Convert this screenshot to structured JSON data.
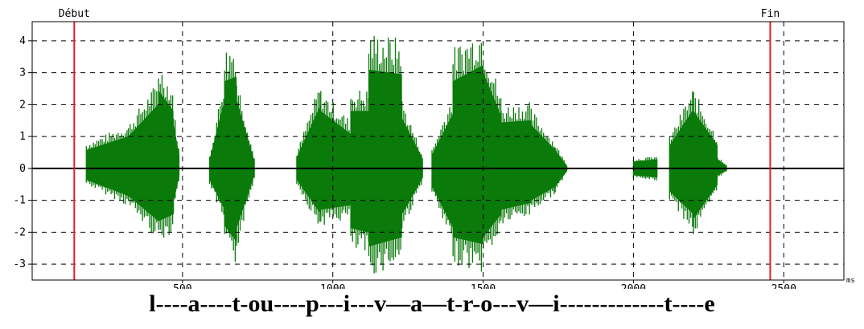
{
  "chart_data": {
    "type": "line",
    "xlabel": "ms",
    "ylabel": "",
    "xlim": [
      0,
      2700
    ],
    "ylim": [
      -3.5,
      4.6
    ],
    "x_ticks": [
      {
        "value": 500,
        "label": "500"
      },
      {
        "value": 1000,
        "label": "1000"
      },
      {
        "value": 1500,
        "label": "1500"
      },
      {
        "value": 2000,
        "label": "2000"
      },
      {
        "value": 2500,
        "label": "2500"
      }
    ],
    "y_ticks": [
      {
        "value": 4,
        "label": "4"
      },
      {
        "value": 3,
        "label": "3"
      },
      {
        "value": 2,
        "label": "2"
      },
      {
        "value": 1,
        "label": "1"
      },
      {
        "value": 0,
        "label": "0"
      },
      {
        "value": -1,
        "label": "-1"
      },
      {
        "value": -2,
        "label": "-2"
      },
      {
        "value": -3,
        "label": "-3"
      }
    ],
    "grid": true,
    "colors": {
      "waveform": "#0a7a0a",
      "marker": "#e02020",
      "grid": "#000000"
    },
    "markers": [
      {
        "name": "debut",
        "x": 140,
        "label": "Début"
      },
      {
        "name": "fin",
        "x": 2455,
        "label": "Fin"
      }
    ],
    "series": [
      {
        "envelope_segments": [
          {
            "x0": 180,
            "x1": 320,
            "pos0": 0.8,
            "pos1": 1.4,
            "neg0": -0.5,
            "neg1": -1.2
          },
          {
            "x0": 320,
            "x1": 420,
            "pos0": 1.4,
            "pos1": 2.8,
            "neg0": -1.2,
            "neg1": -2.3
          },
          {
            "x0": 420,
            "x1": 470,
            "pos0": 3.4,
            "pos1": 2.5,
            "neg0": -2.3,
            "neg1": -2.0
          },
          {
            "x0": 470,
            "x1": 490,
            "pos0": 2.0,
            "pos1": 0.5,
            "neg0": -1.5,
            "neg1": -0.3
          },
          {
            "x0": 590,
            "x1": 640,
            "pos0": 0.4,
            "pos1": 3.0,
            "neg0": -0.5,
            "neg1": -1.8
          },
          {
            "x0": 640,
            "x1": 680,
            "pos0": 3.8,
            "pos1": 4.0,
            "neg0": -2.5,
            "neg1": -3.2
          },
          {
            "x0": 680,
            "x1": 740,
            "pos0": 3.0,
            "pos1": 0.3,
            "neg0": -2.6,
            "neg1": -0.3
          },
          {
            "x0": 880,
            "x1": 960,
            "pos0": 0.5,
            "pos1": 2.8,
            "neg0": -0.5,
            "neg1": -2.0
          },
          {
            "x0": 960,
            "x1": 1060,
            "pos0": 2.5,
            "pos1": 1.5,
            "neg0": -1.8,
            "neg1": -1.6
          },
          {
            "x0": 1060,
            "x1": 1120,
            "pos0": 2.5,
            "pos1": 2.5,
            "neg0": -2.6,
            "neg1": -2.8
          },
          {
            "x0": 1120,
            "x1": 1230,
            "pos0": 4.3,
            "pos1": 4.1,
            "neg0": -3.4,
            "neg1": -3.0
          },
          {
            "x0": 1230,
            "x1": 1300,
            "pos0": 2.2,
            "pos1": 0.4,
            "neg0": -2.0,
            "neg1": -0.4
          },
          {
            "x0": 1330,
            "x1": 1400,
            "pos0": 0.6,
            "pos1": 2.4,
            "neg0": -0.8,
            "neg1": -2.6
          },
          {
            "x0": 1400,
            "x1": 1500,
            "pos0": 3.8,
            "pos1": 4.5,
            "neg0": -3.0,
            "neg1": -3.3
          },
          {
            "x0": 1500,
            "x1": 1560,
            "pos0": 4.2,
            "pos1": 2.3,
            "neg0": -3.0,
            "neg1": -2.0
          },
          {
            "x0": 1560,
            "x1": 1660,
            "pos0": 2.0,
            "pos1": 2.1,
            "neg0": -1.8,
            "neg1": -1.5
          },
          {
            "x0": 1660,
            "x1": 1740,
            "pos0": 1.9,
            "pos1": 0.8,
            "neg0": -1.4,
            "neg1": -0.8
          },
          {
            "x0": 1740,
            "x1": 1780,
            "pos0": 0.8,
            "pos1": 0.1,
            "neg0": -0.8,
            "neg1": -0.1
          },
          {
            "x0": 2000,
            "x1": 2080,
            "pos0": 0.3,
            "pos1": 0.4,
            "neg0": -0.3,
            "neg1": -0.4
          },
          {
            "x0": 2120,
            "x1": 2200,
            "pos0": 1.0,
            "pos1": 2.6,
            "neg0": -1.0,
            "neg1": -2.0
          },
          {
            "x0": 2200,
            "x1": 2280,
            "pos0": 2.5,
            "pos1": 1.0,
            "neg0": -2.2,
            "neg1": -0.7
          },
          {
            "x0": 2280,
            "x1": 2310,
            "pos0": 0.4,
            "pos1": 0.1,
            "neg0": -0.3,
            "neg1": -0.1
          }
        ]
      }
    ]
  },
  "transcription": "l----a----t-ou----p---i---v—a—t-r-o---v—i-------------t----e"
}
